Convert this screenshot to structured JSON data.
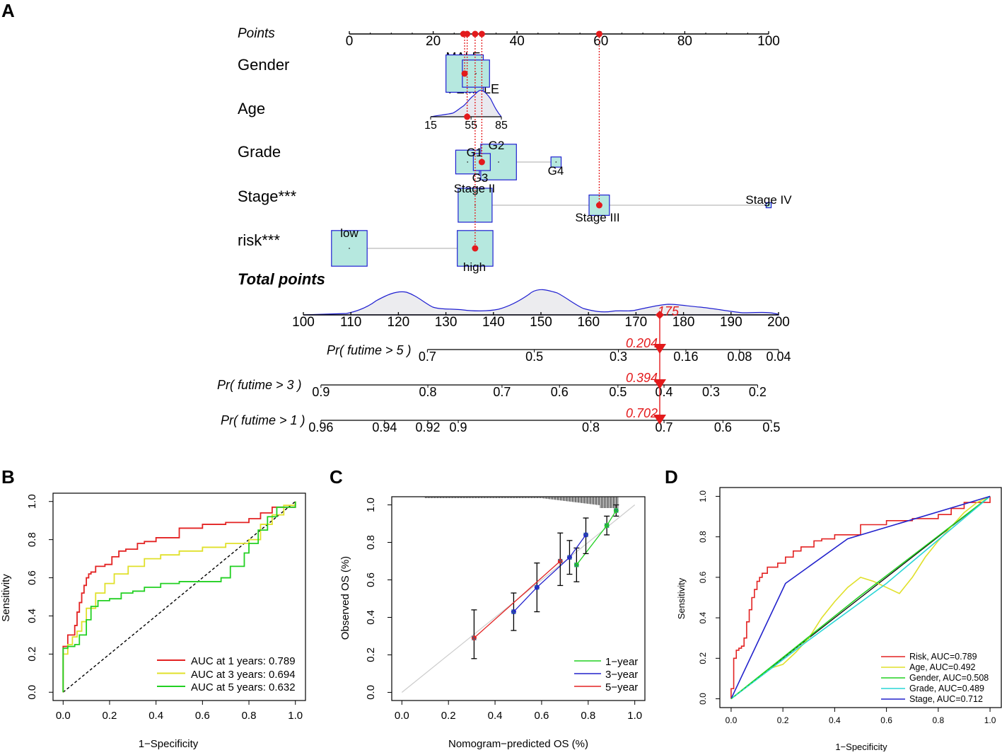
{
  "panels": {
    "a": "A",
    "b": "B",
    "c": "C",
    "d": "D"
  },
  "colors": {
    "red": "#e31a1c",
    "blue": "#1f1fd1",
    "box_fill": "#b6e8df",
    "roc_red": "#e32222",
    "roc_yellow": "#e0e02a",
    "roc_green": "#22d022",
    "roc_cyan": "#2ad6d6",
    "roc_blue": "#2222cc",
    "grey": "#555555"
  },
  "nomogram": {
    "points_label": "Points",
    "points_ticks": [
      "0",
      "20",
      "40",
      "60",
      "80",
      "100"
    ],
    "points_values": [
      0,
      20,
      40,
      60,
      80,
      100
    ],
    "marker_points": [
      27.2,
      28.1,
      30.0,
      31.6,
      59.6
    ],
    "gender": {
      "label": "Gender",
      "levels": [
        {
          "name": "MALE",
          "points": 27.5,
          "size": 2.2
        },
        {
          "name": "FEMALE",
          "points": 30.2,
          "size": 1.6
        }
      ],
      "selected_points": 27.5
    },
    "age": {
      "label": "Age",
      "ticks": [
        "15",
        "55",
        "85"
      ],
      "tick_values": [
        15,
        55,
        85
      ],
      "range": [
        15,
        85
      ],
      "axis_points": [
        19.5,
        36.0
      ],
      "selected_points": 28.1
    },
    "grade": {
      "label": "Grade",
      "levels": [
        {
          "name": "G1",
          "points": 28.2,
          "size": 1.4
        },
        {
          "name": "G2",
          "points": 35.6,
          "size": 2.1
        },
        {
          "name": "G3",
          "points": 31.6,
          "size": 1.0
        },
        {
          "name": "G4",
          "points": 49.3,
          "size": 0.6
        }
      ],
      "selected_points": 31.6
    },
    "stage": {
      "label": "Stage***",
      "levels": [
        {
          "name": "Stage II",
          "points": 30.0,
          "size": 2.0
        },
        {
          "name": "Stage III",
          "points": 59.6,
          "size": 1.2
        },
        {
          "name": "Stage IV",
          "points": 100,
          "size": 0.3
        }
      ],
      "selected_points": 59.6
    },
    "risk": {
      "label": "risk***",
      "levels": [
        {
          "name": "low",
          "points": 0,
          "size": 2.1
        },
        {
          "name": "high",
          "points": 30.0,
          "size": 2.1
        }
      ],
      "selected_points": 30.0
    },
    "total_points": {
      "label": "Total points",
      "ticks": [
        "100",
        "110",
        "120",
        "130",
        "140",
        "150",
        "160",
        "170",
        "180",
        "190",
        "200"
      ],
      "tick_values": [
        100,
        110,
        120,
        130,
        140,
        150,
        160,
        170,
        180,
        190,
        200
      ],
      "selected": 175,
      "selected_label": "175"
    },
    "prob_axes": [
      {
        "label": "Pr( futime > 5 )",
        "value": "0.204",
        "ticks": [
          "0.7",
          "0.5",
          "0.3",
          "0.16",
          "0.08",
          "0.04"
        ],
        "tick_totals": [
          126.1,
          148.6,
          166.3,
          180.5,
          191.8,
          200
        ]
      },
      {
        "label": "Pr( futime > 3 )",
        "value": "0.394",
        "ticks": [
          "0.9",
          "0.8",
          "0.7",
          "0.6",
          "0.5",
          "0.4",
          "0.3",
          "0.2"
        ],
        "tick_totals": [
          103.7,
          126.2,
          141.8,
          153.9,
          166.2,
          175.9,
          185.8,
          195.6
        ]
      },
      {
        "label": "Pr( futime > 1 )",
        "value": "0.702",
        "ticks": [
          "0.96",
          "0.94",
          "0.92",
          "0.9",
          "0.8",
          "0.7",
          "0.6",
          "0.5"
        ],
        "tick_totals": [
          103.7,
          117.1,
          126.2,
          132.6,
          160.5,
          175.9,
          188.3,
          198.5
        ]
      }
    ]
  },
  "chart_data": [
    {
      "panel": "B",
      "type": "line",
      "xlabel": "1−Specificity",
      "ylabel": "Sensitivity",
      "xlim": [
        0,
        1
      ],
      "ylim": [
        0,
        1
      ],
      "xticks": [
        "0.0",
        "0.2",
        "0.4",
        "0.6",
        "0.8",
        "1.0"
      ],
      "yticks": [
        "0.0",
        "0.2",
        "0.4",
        "0.6",
        "0.8",
        "1.0"
      ],
      "tick_values": [
        0,
        0.2,
        0.4,
        0.6,
        0.8,
        1.0
      ],
      "legend_position": "bottom-right",
      "series": [
        {
          "name": "AUC at 1 years: 0.789",
          "color": "#e32222",
          "x": [
            0,
            0,
            0.02,
            0.02,
            0.05,
            0.06,
            0.07,
            0.08,
            0.09,
            0.1,
            0.11,
            0.12,
            0.14,
            0.18,
            0.21,
            0.24,
            0.27,
            0.32,
            0.35,
            0.4,
            0.5,
            0.6,
            0.7,
            0.8,
            0.85,
            0.9,
            1.0
          ],
          "y": [
            0,
            0.24,
            0.25,
            0.3,
            0.35,
            0.42,
            0.47,
            0.52,
            0.56,
            0.6,
            0.62,
            0.63,
            0.66,
            0.67,
            0.71,
            0.74,
            0.75,
            0.78,
            0.79,
            0.81,
            0.86,
            0.88,
            0.89,
            0.91,
            0.94,
            0.97,
            1.0
          ]
        },
        {
          "name": "AUC at 3 years: 0.694",
          "color": "#e0e02a",
          "x": [
            0,
            0,
            0.02,
            0.04,
            0.06,
            0.08,
            0.1,
            0.14,
            0.18,
            0.22,
            0.28,
            0.35,
            0.42,
            0.5,
            0.6,
            0.7,
            0.8,
            0.85,
            0.9,
            0.95,
            1.0
          ],
          "y": [
            0,
            0.2,
            0.25,
            0.29,
            0.32,
            0.37,
            0.44,
            0.52,
            0.57,
            0.62,
            0.66,
            0.7,
            0.72,
            0.74,
            0.76,
            0.78,
            0.8,
            0.88,
            0.93,
            0.98,
            1.0
          ]
        },
        {
          "name": "AUC at 5 years: 0.632",
          "color": "#22d022",
          "x": [
            0,
            0,
            0.02,
            0.05,
            0.07,
            0.1,
            0.12,
            0.15,
            0.2,
            0.25,
            0.3,
            0.35,
            0.42,
            0.5,
            0.6,
            0.68,
            0.72,
            0.78,
            0.8,
            0.84,
            0.88,
            0.92,
            1.0
          ],
          "y": [
            0,
            0.23,
            0.24,
            0.25,
            0.3,
            0.38,
            0.45,
            0.48,
            0.49,
            0.52,
            0.53,
            0.55,
            0.57,
            0.58,
            0.58,
            0.6,
            0.66,
            0.73,
            0.78,
            0.85,
            0.92,
            0.97,
            1.0
          ]
        }
      ],
      "reference_line": [
        [
          0,
          0
        ],
        [
          1,
          1
        ]
      ]
    },
    {
      "panel": "C",
      "type": "line",
      "xlabel": "Nomogram−predicted OS (%)",
      "ylabel": "Observed OS (%)",
      "xlim": [
        0,
        1
      ],
      "ylim": [
        0,
        1
      ],
      "xticks": [
        "0.0",
        "0.2",
        "0.4",
        "0.6",
        "0.8",
        "1.0"
      ],
      "yticks": [
        "0.0",
        "0.2",
        "0.4",
        "0.6",
        "0.8",
        "1.0"
      ],
      "tick_values": [
        0,
        0.2,
        0.4,
        0.6,
        0.8,
        1.0
      ],
      "legend_position": "bottom-right",
      "series": [
        {
          "name": "1−year",
          "color": "#22d022",
          "x": [
            0.75,
            0.88,
            0.92
          ],
          "y": [
            0.68,
            0.89,
            0.97
          ],
          "err_low": [
            0.59,
            0.84,
            0.94
          ],
          "err_high": [
            0.77,
            0.94,
            1.0
          ]
        },
        {
          "name": "3−year",
          "color": "#2222cc",
          "x": [
            0.48,
            0.58,
            0.72,
            0.79
          ],
          "y": [
            0.43,
            0.56,
            0.72,
            0.84
          ],
          "err_low": [
            0.33,
            0.43,
            0.63,
            0.74
          ],
          "err_high": [
            0.53,
            0.69,
            0.81,
            0.93
          ]
        },
        {
          "name": "5−year",
          "color": "#e32222",
          "x": [
            0.31,
            0.68
          ],
          "y": [
            0.29,
            0.7
          ],
          "err_low": [
            0.18,
            0.57
          ],
          "err_high": [
            0.44,
            0.85
          ]
        }
      ],
      "reference_line": [
        [
          0,
          0
        ],
        [
          1,
          1
        ]
      ]
    },
    {
      "panel": "D",
      "type": "line",
      "xlabel": "1−Specificity",
      "ylabel": "Sensitivity",
      "xlim": [
        0,
        1
      ],
      "ylim": [
        0,
        1
      ],
      "xticks": [
        "0.0",
        "0.2",
        "0.4",
        "0.6",
        "0.8",
        "1.0"
      ],
      "yticks": [
        "0.0",
        "0.2",
        "0.4",
        "0.6",
        "0.8",
        "1.0"
      ],
      "tick_values": [
        0,
        0.2,
        0.4,
        0.6,
        0.8,
        1.0
      ],
      "legend_position": "bottom-right",
      "series": [
        {
          "name": "Risk, AUC=0.789",
          "color": "#e32222",
          "x": [
            0,
            0,
            0.01,
            0.02,
            0.03,
            0.04,
            0.05,
            0.06,
            0.07,
            0.08,
            0.09,
            0.1,
            0.11,
            0.12,
            0.14,
            0.18,
            0.21,
            0.24,
            0.27,
            0.32,
            0.35,
            0.4,
            0.5,
            0.6,
            0.7,
            0.8,
            0.85,
            0.9,
            1.0
          ],
          "y": [
            0,
            0.05,
            0.2,
            0.24,
            0.25,
            0.26,
            0.3,
            0.38,
            0.44,
            0.5,
            0.54,
            0.58,
            0.6,
            0.62,
            0.65,
            0.67,
            0.7,
            0.73,
            0.75,
            0.78,
            0.79,
            0.81,
            0.86,
            0.88,
            0.89,
            0.91,
            0.94,
            0.97,
            1.0
          ]
        },
        {
          "name": "Age, AUC=0.492",
          "color": "#e0e02a",
          "x": [
            0,
            0.05,
            0.1,
            0.15,
            0.2,
            0.25,
            0.3,
            0.35,
            0.4,
            0.45,
            0.5,
            0.55,
            0.6,
            0.65,
            0.7,
            0.75,
            0.8,
            0.85,
            0.9,
            0.95,
            1.0
          ],
          "y": [
            0,
            0.05,
            0.1,
            0.15,
            0.17,
            0.23,
            0.3,
            0.4,
            0.48,
            0.55,
            0.6,
            0.58,
            0.55,
            0.52,
            0.6,
            0.7,
            0.78,
            0.85,
            0.92,
            0.97,
            1.0
          ]
        },
        {
          "name": "Gender, AUC=0.508",
          "color": "#22d022",
          "x": [
            0,
            0.5,
            1.0
          ],
          "y": [
            0,
            0.51,
            1.0
          ]
        },
        {
          "name": "Grade, AUC=0.489",
          "color": "#2ad6d6",
          "x": [
            0,
            0.3,
            0.6,
            1.0
          ],
          "y": [
            0,
            0.29,
            0.57,
            1.0
          ]
        },
        {
          "name": "Stage, AUC=0.712",
          "color": "#2222cc",
          "x": [
            0,
            0.21,
            0.45,
            1.0
          ],
          "y": [
            0,
            0.57,
            0.79,
            1.0
          ]
        }
      ],
      "reference_line": [
        [
          0,
          0
        ],
        [
          1,
          1
        ]
      ]
    }
  ]
}
